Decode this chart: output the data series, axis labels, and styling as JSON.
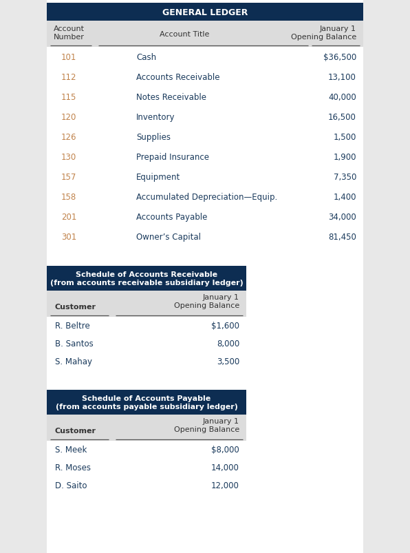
{
  "bg_color": "#e8e8e8",
  "page_bg": "#ffffff",
  "header_bg": "#0d2d52",
  "header_text_color": "#ffffff",
  "subheader_bg": "#dcdcdc",
  "body_bg": "#ffffff",
  "num_color": "#c0824a",
  "title_color": "#1a3a5c",
  "balance_color": "#1a3a5c",
  "gl_title": "GENERAL LEDGER",
  "gl_rows": [
    [
      "101",
      "Cash",
      "$36,500"
    ],
    [
      "112",
      "Accounts Receivable",
      "13,100"
    ],
    [
      "115",
      "Notes Receivable",
      "40,000"
    ],
    [
      "120",
      "Inventory",
      "16,500"
    ],
    [
      "126",
      "Supplies",
      "1,500"
    ],
    [
      "130",
      "Prepaid Insurance",
      "1,900"
    ],
    [
      "157",
      "Equipment",
      "7,350"
    ],
    [
      "158",
      "Accumulated Depreciation—Equip.",
      "1,400"
    ],
    [
      "201",
      "Accounts Payable",
      "34,000"
    ],
    [
      "301",
      "Owner’s Capital",
      "81,450"
    ]
  ],
  "ar_title": "Schedule of Accounts Receivable\n(from accounts receivable subsidiary ledger)",
  "ar_rows": [
    [
      "R. Beltre",
      "$1,600"
    ],
    [
      "B. Santos",
      "8,000"
    ],
    [
      "S. Mahay",
      "3,500"
    ]
  ],
  "ap_title": "Schedule of Accounts Payable\n(from accounts payable subsidiary ledger)",
  "ap_rows": [
    [
      "S. Meek",
      "$8,000"
    ],
    [
      "R. Moses",
      "14,000"
    ],
    [
      "D. Saito",
      "12,000"
    ]
  ]
}
